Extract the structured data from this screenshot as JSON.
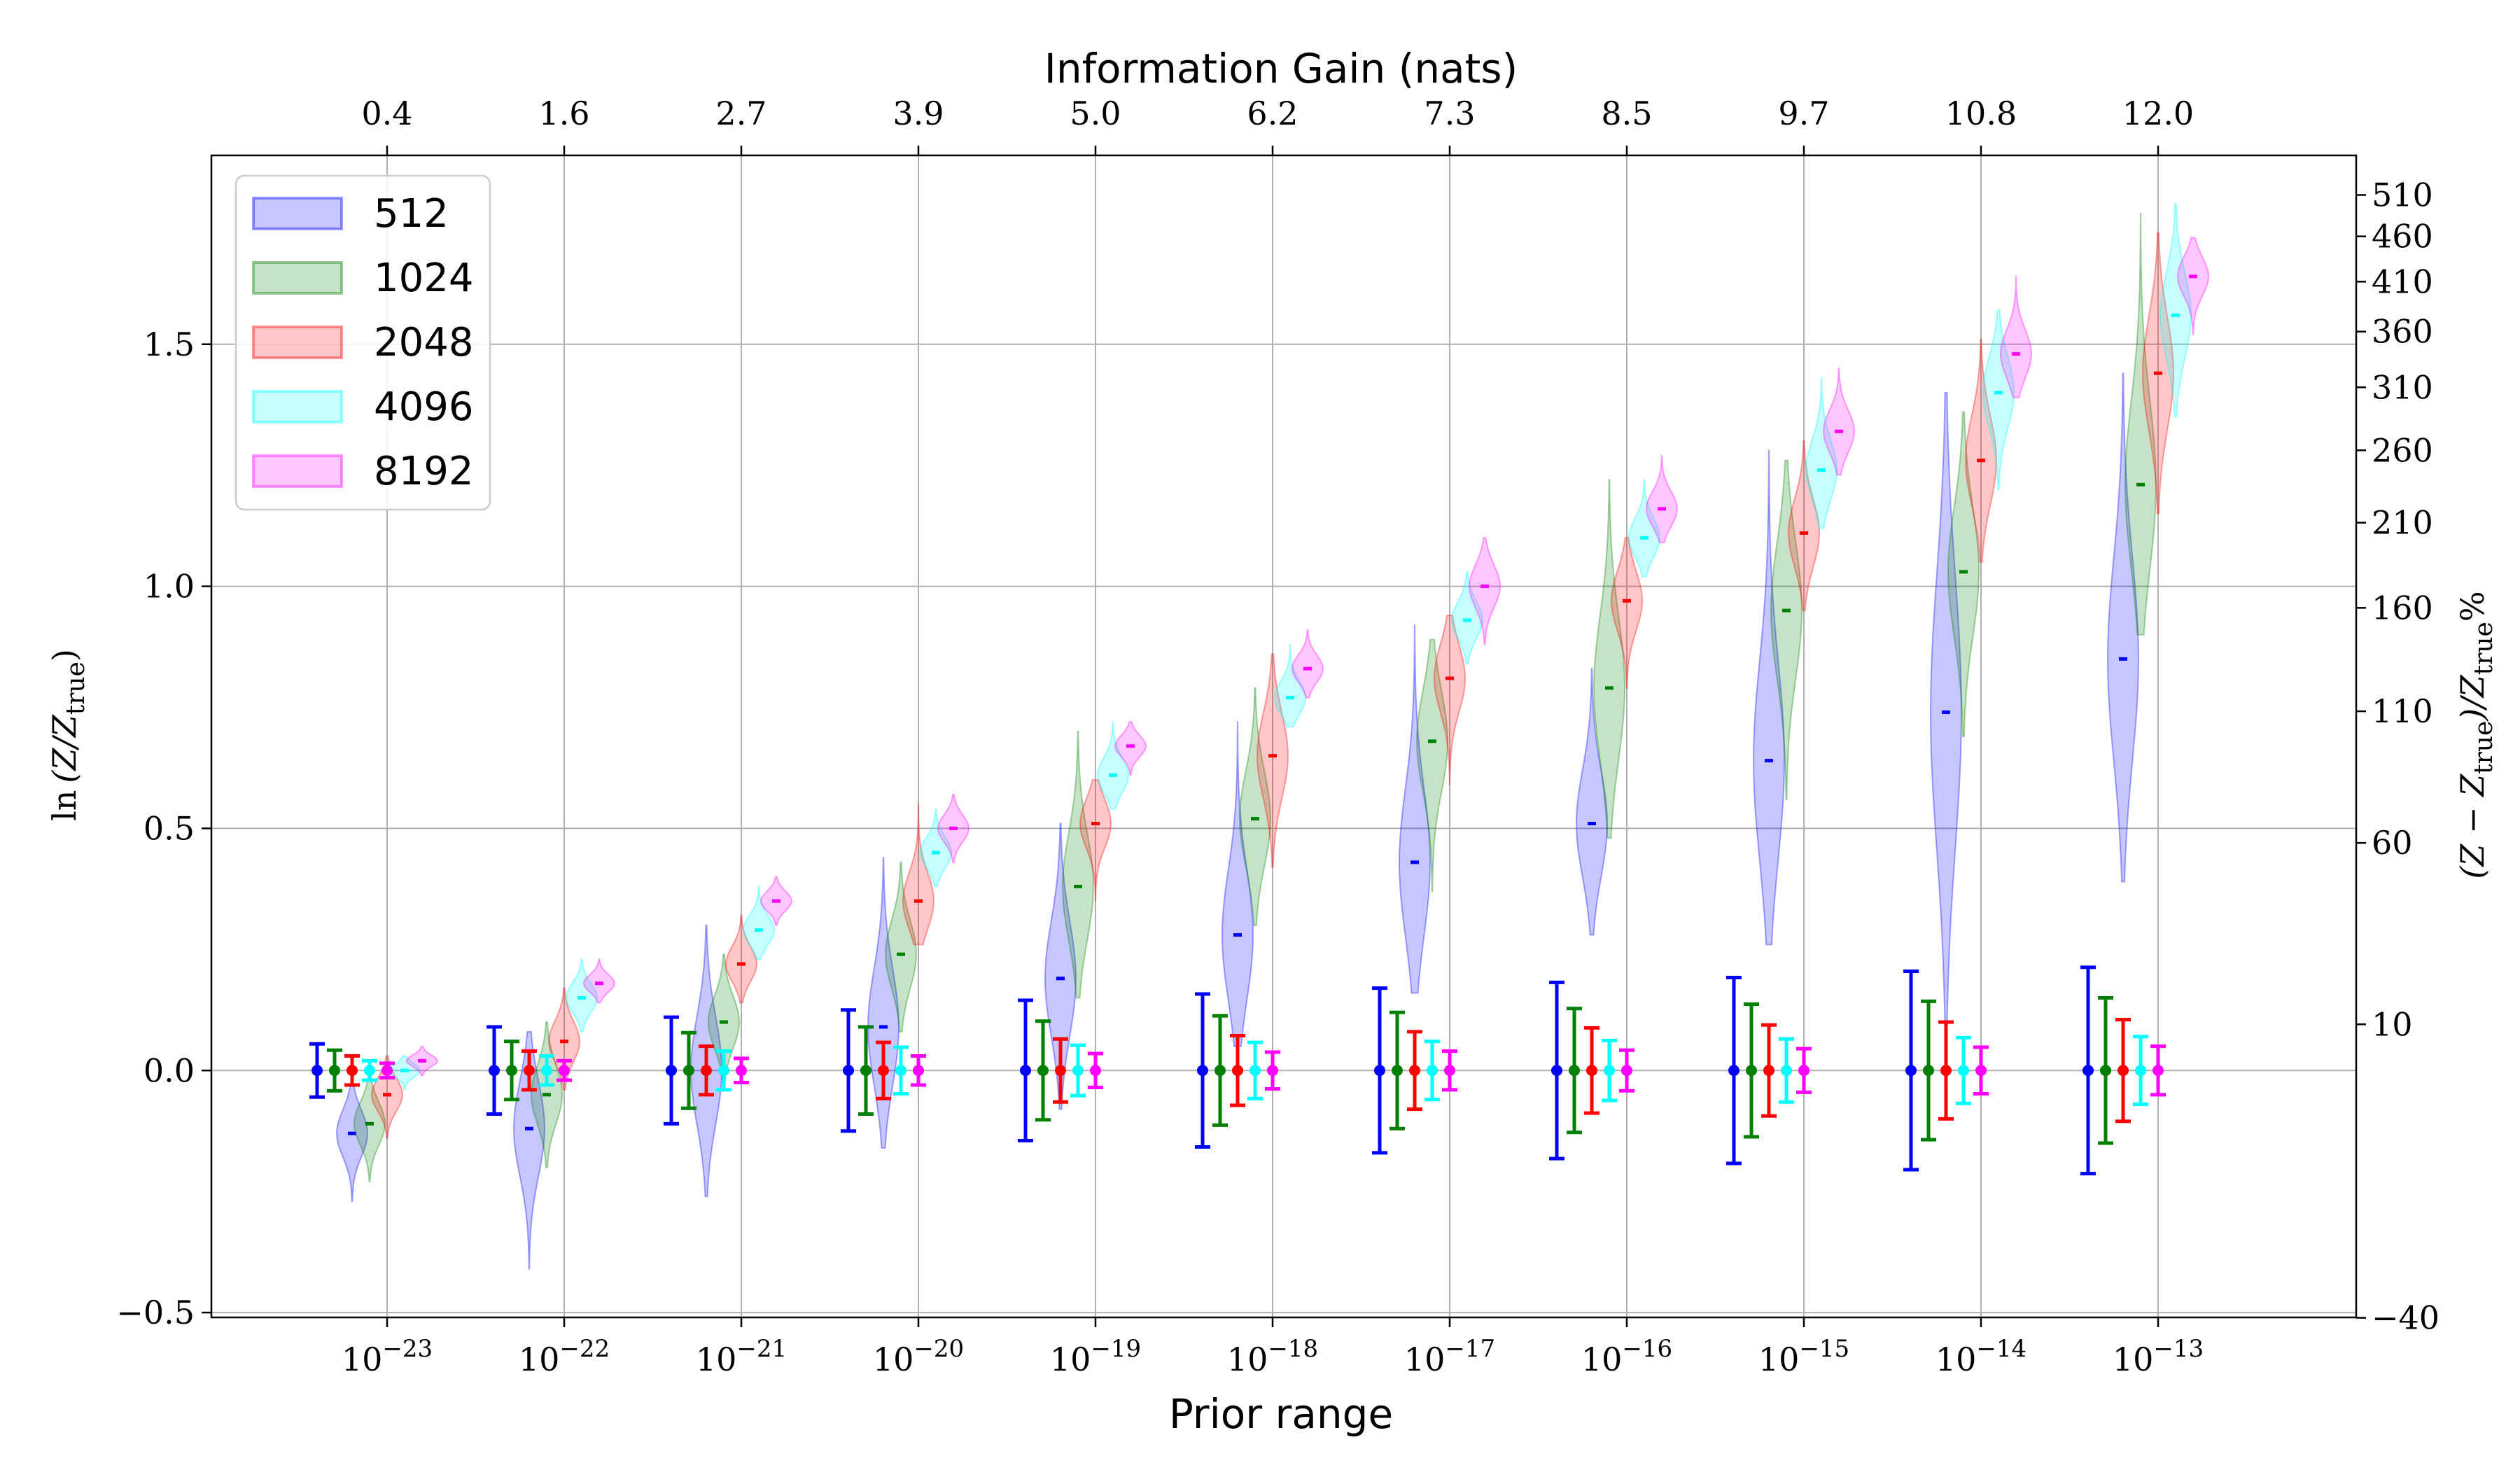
{
  "chart_data": {
    "type": "violin",
    "title": "",
    "xlabel": "Prior range",
    "ylabel": "ln(Z/Z_true)",
    "ylabel_parts": {
      "main": "ln",
      "open": "(Z/Z",
      "sub": "true",
      "close": ")"
    },
    "top_xlabel": "Information Gain (nats)",
    "right_ylabel": "(Z − Z_true)/Z_true %",
    "right_ylabel_parts": {
      "a": "(Z − Z",
      "sub1": "true",
      "b": ")/Z",
      "sub2": "true",
      "c": "%"
    },
    "ylim": [
      -0.51,
      1.89
    ],
    "grid": true,
    "legend_position": "upper-left",
    "yticks": [
      "−0.5",
      "0.0",
      "0.5",
      "1.0",
      "1.5"
    ],
    "ytick_values": [
      -0.5,
      0.0,
      0.5,
      1.0,
      1.5
    ],
    "right_ticks": [
      "−40",
      "10",
      "60",
      "110",
      "160",
      "210",
      "260",
      "310",
      "360",
      "410",
      "460",
      "510"
    ],
    "right_tick_values": [
      -40,
      10,
      60,
      110,
      160,
      210,
      260,
      310,
      360,
      410,
      460,
      510
    ],
    "x_bases": [
      "10",
      "10",
      "10",
      "10",
      "10",
      "10",
      "10",
      "10",
      "10",
      "10",
      "10"
    ],
    "x_exponents": [
      "−23",
      "−22",
      "−21",
      "−20",
      "−19",
      "−18",
      "−17",
      "−16",
      "−15",
      "−14",
      "−13"
    ],
    "top_ticks": [
      "0.4",
      "1.6",
      "2.7",
      "3.9",
      "5.0",
      "6.2",
      "7.3",
      "8.5",
      "9.7",
      "10.8",
      "12.0"
    ],
    "series": [
      {
        "name": "512",
        "color": "#0000ff",
        "medians": [
          -0.13,
          -0.12,
          0.0,
          0.09,
          0.19,
          0.28,
          0.43,
          0.51,
          0.64,
          0.74,
          0.85
        ],
        "min": [
          -0.27,
          -0.41,
          -0.26,
          -0.16,
          -0.08,
          0.05,
          0.16,
          0.28,
          0.26,
          0.0,
          0.39
        ],
        "max": [
          -0.03,
          0.08,
          0.3,
          0.44,
          0.51,
          0.72,
          0.92,
          0.83,
          1.28,
          1.4,
          1.44
        ],
        "err": [
          0.055,
          0.09,
          0.11,
          0.125,
          0.145,
          0.158,
          0.17,
          0.182,
          0.192,
          0.205,
          0.213
        ]
      },
      {
        "name": "1024",
        "color": "#008000",
        "medians": [
          -0.11,
          -0.05,
          0.1,
          0.24,
          0.38,
          0.52,
          0.68,
          0.79,
          0.95,
          1.03,
          1.21
        ],
        "min": [
          -0.23,
          -0.2,
          -0.03,
          0.08,
          0.15,
          0.3,
          0.37,
          0.48,
          0.56,
          0.69,
          0.9
        ],
        "max": [
          -0.01,
          0.1,
          0.24,
          0.43,
          0.7,
          0.79,
          0.89,
          1.22,
          1.26,
          1.36,
          1.77
        ],
        "err": [
          0.042,
          0.06,
          0.078,
          0.09,
          0.102,
          0.113,
          0.12,
          0.128,
          0.137,
          0.143,
          0.15
        ]
      },
      {
        "name": "2048",
        "color": "#ff0000",
        "medians": [
          -0.05,
          0.06,
          0.22,
          0.35,
          0.51,
          0.65,
          0.81,
          0.97,
          1.11,
          1.26,
          1.44
        ],
        "min": [
          -0.14,
          -0.04,
          0.14,
          0.26,
          0.35,
          0.42,
          0.59,
          0.79,
          0.95,
          1.05,
          1.15
        ],
        "max": [
          0.03,
          0.17,
          0.32,
          0.55,
          0.6,
          0.86,
          0.94,
          1.1,
          1.3,
          1.51,
          1.73
        ],
        "err": [
          0.03,
          0.04,
          0.05,
          0.058,
          0.065,
          0.072,
          0.08,
          0.088,
          0.094,
          0.1,
          0.105
        ]
      },
      {
        "name": "4096",
        "color": "#00ffff",
        "medians": [
          0.0,
          0.15,
          0.29,
          0.45,
          0.61,
          0.77,
          0.93,
          1.1,
          1.24,
          1.4,
          1.56
        ],
        "min": [
          -0.04,
          0.08,
          0.23,
          0.38,
          0.54,
          0.71,
          0.84,
          1.02,
          1.12,
          1.2,
          1.35
        ],
        "max": [
          0.03,
          0.23,
          0.38,
          0.54,
          0.72,
          0.88,
          1.03,
          1.22,
          1.43,
          1.57,
          1.79
        ],
        "err": [
          0.02,
          0.03,
          0.04,
          0.048,
          0.052,
          0.058,
          0.06,
          0.062,
          0.065,
          0.068,
          0.07
        ]
      },
      {
        "name": "8192",
        "color": "#ff00ff",
        "medians": [
          0.02,
          0.18,
          0.35,
          0.5,
          0.67,
          0.83,
          1.0,
          1.16,
          1.32,
          1.48,
          1.64
        ],
        "min": [
          -0.01,
          0.14,
          0.3,
          0.43,
          0.61,
          0.77,
          0.88,
          1.09,
          1.23,
          1.39,
          1.52
        ],
        "max": [
          0.05,
          0.23,
          0.4,
          0.57,
          0.72,
          0.91,
          1.1,
          1.27,
          1.45,
          1.64,
          1.72
        ],
        "err": [
          0.015,
          0.02,
          0.025,
          0.03,
          0.035,
          0.038,
          0.04,
          0.042,
          0.045,
          0.048,
          0.05
        ]
      }
    ]
  }
}
